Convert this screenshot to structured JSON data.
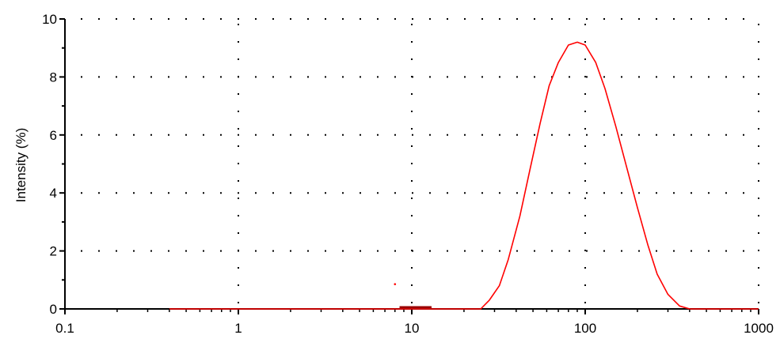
{
  "chart_data": {
    "type": "line",
    "title": "",
    "xlabel": "",
    "ylabel": "Intensity (%)",
    "x_scale": "log",
    "xlim": [
      0.1,
      1000
    ],
    "ylim": [
      0,
      10
    ],
    "x_ticks": [
      0.1,
      1,
      10,
      100,
      1000
    ],
    "x_tick_labels": [
      "0.1",
      "1",
      "10",
      "100",
      "1000"
    ],
    "y_ticks": [
      0,
      2,
      4,
      6,
      8,
      10
    ],
    "y_tick_labels": [
      "0",
      "2",
      "4",
      "6",
      "8",
      "10"
    ],
    "grid": "dotted",
    "legend": "none",
    "series": [
      {
        "color": "#ff0000",
        "x": [
          0.4,
          1,
          5,
          8,
          12,
          20,
          25,
          28,
          32,
          36,
          42,
          48,
          55,
          62,
          70,
          80,
          90,
          100,
          115,
          130,
          150,
          175,
          200,
          230,
          260,
          300,
          350,
          400,
          450,
          600,
          1000
        ],
        "y": [
          0,
          0,
          0,
          0,
          0,
          0,
          0,
          0.3,
          0.8,
          1.7,
          3.2,
          4.8,
          6.4,
          7.7,
          8.5,
          9.1,
          9.2,
          9.1,
          8.5,
          7.6,
          6.3,
          4.8,
          3.5,
          2.2,
          1.2,
          0.5,
          0.1,
          0,
          0,
          0,
          0
        ]
      }
    ],
    "annotations": [
      {
        "kind": "outlier-point",
        "x": 8.0,
        "y": 0.8,
        "color": "#ff0000"
      },
      {
        "kind": "baseline-segment",
        "x": [
          8.5,
          13
        ],
        "y": 0.05,
        "color": "#990000"
      }
    ]
  }
}
